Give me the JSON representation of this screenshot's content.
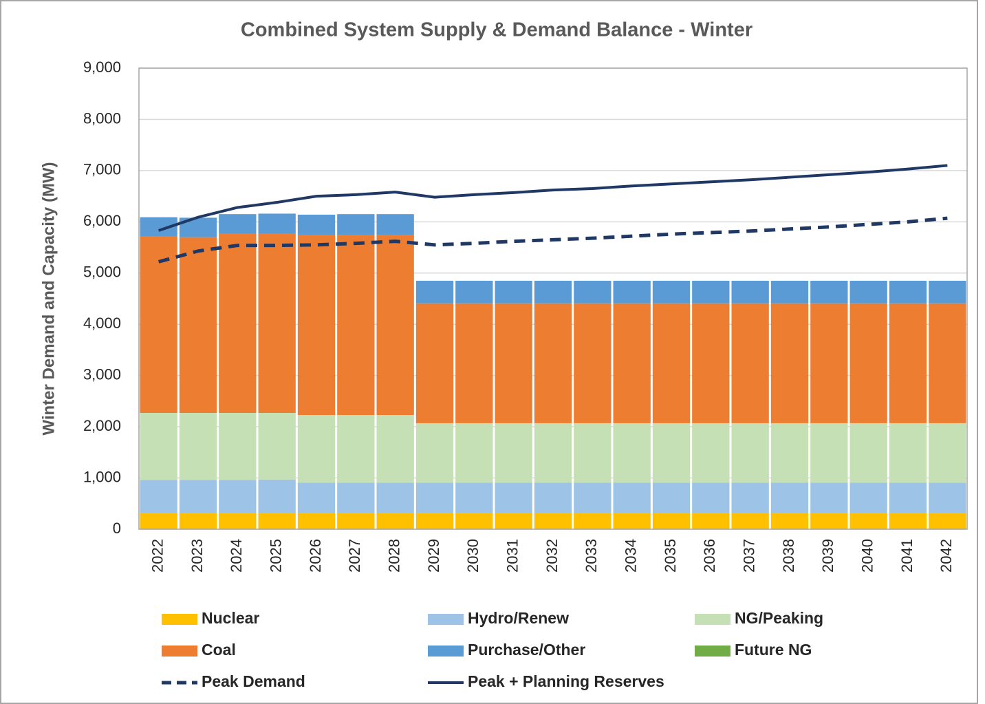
{
  "chart_data": {
    "type": "bar",
    "stacked": true,
    "title": "Combined System Supply & Demand Balance - Winter",
    "y_label": "Winter Demand and Capacity (MW)",
    "categories": [
      "2022",
      "2023",
      "2024",
      "2025",
      "2026",
      "2027",
      "2028",
      "2029",
      "2030",
      "2031",
      "2032",
      "2033",
      "2034",
      "2035",
      "2036",
      "2037",
      "2038",
      "2039",
      "2040",
      "2041",
      "2042"
    ],
    "series": [
      {
        "name": "Nuclear",
        "kind": "bar",
        "color": "#ffc000",
        "values": [
          310,
          310,
          310,
          310,
          310,
          310,
          310,
          310,
          310,
          310,
          310,
          310,
          310,
          310,
          310,
          310,
          310,
          310,
          310,
          310,
          310
        ]
      },
      {
        "name": "Hydro/Renew",
        "kind": "bar",
        "color": "#9dc3e6",
        "values": [
          650,
          650,
          650,
          660,
          600,
          600,
          600,
          600,
          600,
          600,
          600,
          600,
          600,
          600,
          600,
          600,
          600,
          600,
          600,
          600,
          600
        ]
      },
      {
        "name": "NG/Peaking",
        "kind": "bar",
        "color": "#c5e0b4",
        "values": [
          1310,
          1310,
          1310,
          1300,
          1320,
          1320,
          1320,
          1160,
          1160,
          1160,
          1160,
          1160,
          1160,
          1160,
          1160,
          1160,
          1160,
          1160,
          1160,
          1160,
          1160
        ]
      },
      {
        "name": "Coal",
        "kind": "bar",
        "color": "#ed7d31",
        "values": [
          3440,
          3430,
          3500,
          3500,
          3510,
          3510,
          3510,
          2340,
          2340,
          2340,
          2340,
          2340,
          2340,
          2340,
          2340,
          2340,
          2340,
          2340,
          2340,
          2340,
          2340
        ]
      },
      {
        "name": "Purchase/Other",
        "kind": "bar",
        "color": "#5b9bd5",
        "values": [
          380,
          380,
          380,
          390,
          400,
          410,
          410,
          440,
          440,
          440,
          440,
          440,
          440,
          440,
          440,
          440,
          440,
          440,
          440,
          440,
          440
        ]
      },
      {
        "name": "Future NG",
        "kind": "bar",
        "color": "#70ad47",
        "values": [
          0,
          0,
          0,
          0,
          0,
          0,
          0,
          0,
          0,
          0,
          0,
          0,
          0,
          0,
          0,
          0,
          0,
          0,
          0,
          0,
          0
        ]
      },
      {
        "name": "Peak Demand",
        "kind": "line",
        "line_style": "dashed",
        "color": "#1f3864",
        "values": [
          5220,
          5430,
          5540,
          5540,
          5550,
          5580,
          5620,
          5550,
          5580,
          5620,
          5650,
          5680,
          5720,
          5760,
          5790,
          5820,
          5860,
          5900,
          5950,
          6000,
          6070
        ]
      },
      {
        "name": "Peak + Planning Reserves",
        "kind": "line",
        "line_style": "solid",
        "color": "#1f3864",
        "values": [
          5830,
          6090,
          6280,
          6380,
          6500,
          6530,
          6580,
          6480,
          6530,
          6570,
          6620,
          6650,
          6700,
          6740,
          6780,
          6820,
          6870,
          6920,
          6970,
          7030,
          7100
        ]
      }
    ],
    "ylim": [
      0,
      9000
    ],
    "yticks": [
      0,
      {
        "value": 1000,
        "label": "1,000"
      },
      {
        "value": 2000,
        "label": "2,000"
      },
      {
        "value": 3000,
        "label": "3,000"
      },
      {
        "value": 4000,
        "label": "4,000"
      },
      {
        "value": 5000,
        "label": "5,000"
      },
      {
        "value": 6000,
        "label": "6,000"
      },
      {
        "value": 7000,
        "label": "7,000"
      },
      {
        "value": 8000,
        "label": "8,000"
      },
      {
        "value": 9000,
        "label": "9,000"
      }
    ],
    "grid": true
  }
}
